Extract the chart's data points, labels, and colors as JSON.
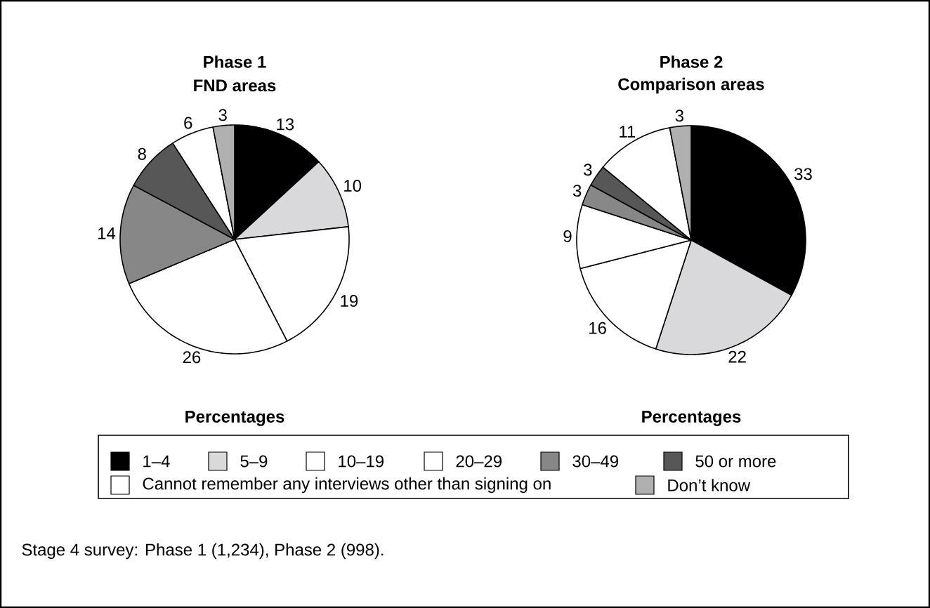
{
  "chart_data": [
    {
      "type": "pie",
      "title": "Phase 1",
      "subtitle": "FND areas",
      "xlabel": "Percentages",
      "legend": "bottom",
      "data_labels": true,
      "categories": [
        "1–4",
        "5–9",
        "10–19",
        "20–29",
        "30–49",
        "50 or more",
        "Cannot remember any interviews other than signing on",
        "Don’t know"
      ],
      "values": [
        13,
        10,
        19,
        26,
        14,
        8,
        6,
        3
      ],
      "colors": [
        "#000000",
        "#d9d9db",
        "#ffffff",
        "#ffffff",
        "#878787",
        "#575757",
        "#ffffff",
        "#b0b0b0"
      ],
      "annotations": [
        "Stage 4 survey: Phase 1 (1,234), Phase 2 (998)."
      ]
    },
    {
      "type": "pie",
      "title": "Phase 2",
      "subtitle": "Comparison areas",
      "xlabel": "Percentages",
      "data_labels": true,
      "categories": [
        null,
        null,
        null,
        null,
        null,
        null,
        null,
        null
      ],
      "values": [
        33,
        22,
        16,
        9,
        3,
        3,
        11,
        3
      ],
      "colors": [
        "#000000",
        "#d9d9db",
        "#ffffff",
        "#ffffff",
        "#878787",
        "#575757",
        "#ffffff",
        "#b0b0b0"
      ]
    }
  ]
}
